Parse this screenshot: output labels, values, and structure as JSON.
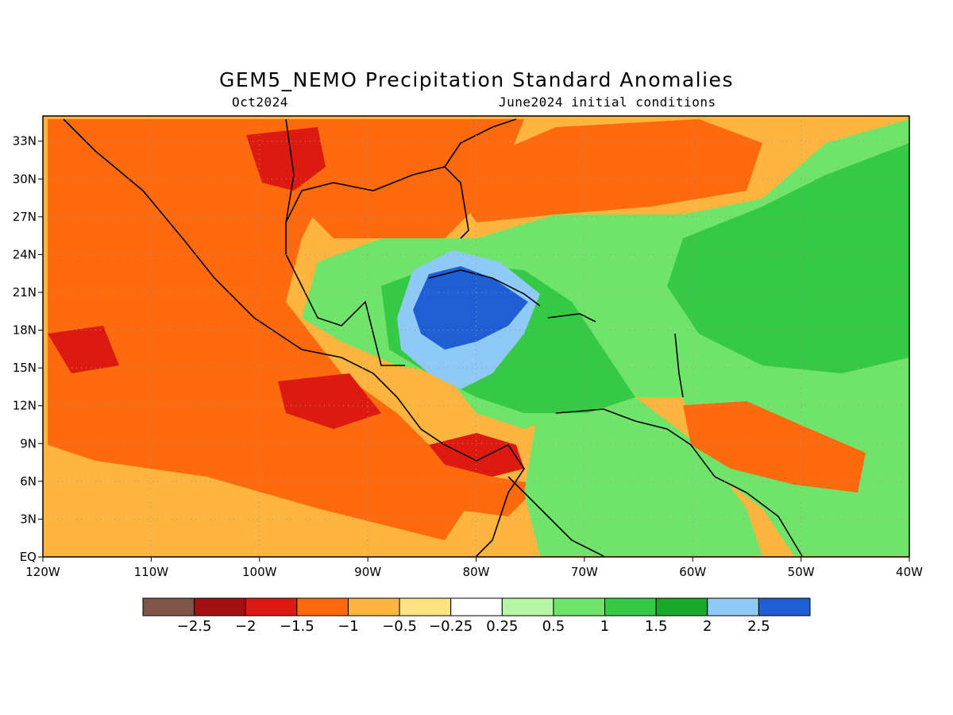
{
  "title": "GEM5_NEMO Precipitation Standard Anomalies",
  "subtitle_left": "Oct2024",
  "subtitle_right": "June2024 initial conditions",
  "map": {
    "lon_range": [
      -120,
      -40
    ],
    "lat_range": [
      0,
      35
    ],
    "x_tick_labels": [
      "120W",
      "110W",
      "100W",
      "90W",
      "80W",
      "70W",
      "60W",
      "50W",
      "40W"
    ],
    "y_tick_labels": [
      "EQ",
      "3N",
      "6N",
      "9N",
      "12N",
      "15N",
      "18N",
      "21N",
      "24N",
      "27N",
      "30N",
      "33N"
    ],
    "grid": "dotted"
  },
  "colorbar": {
    "colors": [
      "#7f5548",
      "#a50f0f",
      "#dc1a10",
      "#ff6a0e",
      "#fdb540",
      "#fee382",
      "#ffffff",
      "#b5f5a6",
      "#6fe36a",
      "#36c946",
      "#1aa82a",
      "#8fcaf6",
      "#1f5fd6"
    ],
    "labels": [
      "−2.5",
      "−2",
      "−1.5",
      "−1",
      "−0.5",
      "−0.25",
      "0.25",
      "0.5",
      "1",
      "1.5",
      "2",
      "2.5"
    ]
  },
  "regions": [
    {
      "name": "base-dry",
      "color": "#fdb540"
    },
    {
      "name": "mexico-dry",
      "color": "#ff6a0e"
    },
    {
      "name": "pacific-dry",
      "color": "#ff6a0e"
    },
    {
      "name": "gulf-dry",
      "color": "#ff6a0e"
    },
    {
      "name": "atlantic-dry",
      "color": "#ff6a0e"
    },
    {
      "name": "caribbean-wet",
      "color": "#6fe36a"
    },
    {
      "name": "south-america-wet",
      "color": "#6fe36a"
    },
    {
      "name": "caribbean-core-wet",
      "color": "#36c946"
    },
    {
      "name": "atlantic-wet",
      "color": "#36c946"
    },
    {
      "name": "cuba-very-wet",
      "color": "#8fcaf6"
    },
    {
      "name": "cuba-extreme-wet",
      "color": "#1f5fd6"
    },
    {
      "name": "guiana-dry",
      "color": "#ff6a0e"
    },
    {
      "name": "panama-dry",
      "color": "#dc1a10"
    },
    {
      "name": "mexico-severe-dry",
      "color": "#dc1a10"
    }
  ]
}
